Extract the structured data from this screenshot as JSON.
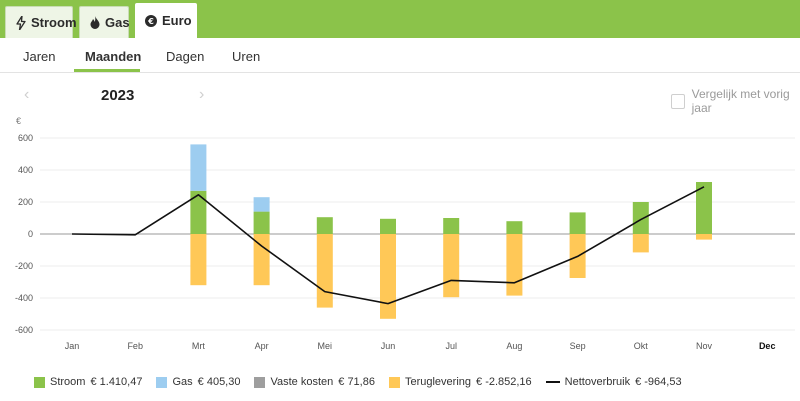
{
  "energy_tabs": [
    {
      "label": "Stroom",
      "icon": "lightning-icon"
    },
    {
      "label": "Gas",
      "icon": "flame-icon"
    },
    {
      "label": "Euro",
      "icon": "euro-icon"
    }
  ],
  "active_energy_tab": "Euro",
  "period_tabs": [
    "Jaren",
    "Maanden",
    "Dagen",
    "Uren"
  ],
  "active_period_tab": "Maanden",
  "year": "2023",
  "compare_label": "Vergelijk met vorig jaar",
  "colors": {
    "brand": "#8bc34a",
    "stroom": "#8bc34a",
    "gas": "#9dcdf0",
    "vaste_kosten": "#9e9e9e",
    "teruglevering": "#ffc857",
    "nettoverbruik": "#111111"
  },
  "chart_data": {
    "type": "bar",
    "ylabel": "€",
    "ylim": [
      -620,
      620
    ],
    "yticks": [
      -600,
      -400,
      -200,
      0,
      200,
      400,
      600
    ],
    "categories": [
      "Jan",
      "Feb",
      "Mrt",
      "Apr",
      "Mei",
      "Jun",
      "Jul",
      "Aug",
      "Sep",
      "Okt",
      "Nov",
      "Dec"
    ],
    "current_category": "Dec",
    "series": [
      {
        "name": "Stroom",
        "color": "#8bc34a",
        "values": [
          null,
          null,
          270,
          140,
          105,
          95,
          100,
          80,
          135,
          200,
          325,
          null
        ]
      },
      {
        "name": "Gas",
        "color": "#9dcdf0",
        "values": [
          null,
          null,
          290,
          90,
          0,
          0,
          0,
          0,
          0,
          0,
          0,
          null
        ]
      },
      {
        "name": "Teruglevering",
        "color": "#ffc857",
        "values": [
          null,
          null,
          -320,
          -320,
          -460,
          -530,
          -395,
          -385,
          -275,
          -115,
          -35,
          null
        ]
      },
      {
        "name": "Nettoverbruik",
        "type": "line",
        "color": "#111111",
        "values": [
          0,
          -5,
          245,
          -75,
          -360,
          -435,
          -290,
          -305,
          -140,
          90,
          295,
          null
        ]
      }
    ]
  },
  "legend": [
    {
      "label": "Stroom",
      "value": "€ 1.410,47",
      "color": "#8bc34a",
      "kind": "bar"
    },
    {
      "label": "Gas",
      "value": "€ 405,30",
      "color": "#9dcdf0",
      "kind": "bar"
    },
    {
      "label": "Vaste kosten",
      "value": "€ 71,86",
      "color": "#9e9e9e",
      "kind": "bar"
    },
    {
      "label": "Teruglevering",
      "value": "€ -2.852,16",
      "color": "#ffc857",
      "kind": "bar"
    },
    {
      "label": "Nettoverbruik",
      "value": "€ -964,53",
      "color": "#111111",
      "kind": "line"
    }
  ]
}
